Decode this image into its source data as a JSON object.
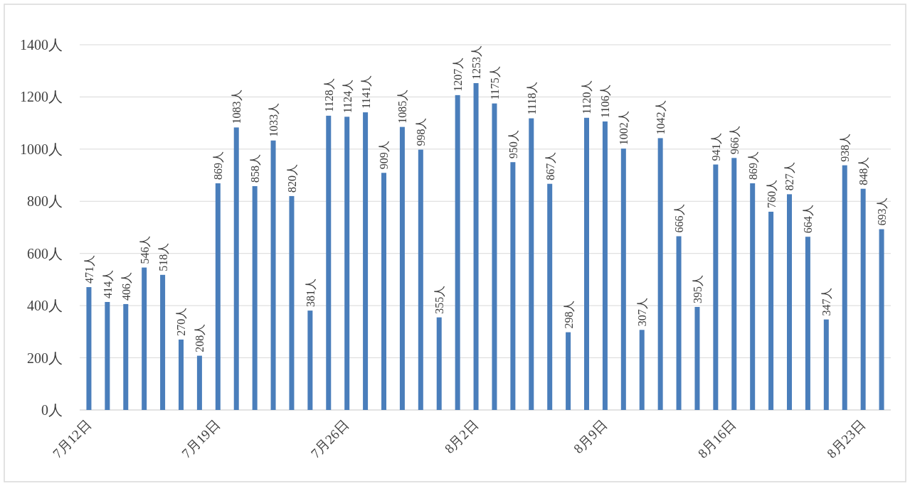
{
  "chart_data": {
    "type": "bar",
    "color": "#4a7ebb",
    "grid": "y",
    "ylim": [
      0,
      1400
    ],
    "yticks": [
      {
        "value": 0,
        "label": "0人"
      },
      {
        "value": 200,
        "label": "200人"
      },
      {
        "value": 400,
        "label": "400人"
      },
      {
        "value": 600,
        "label": "600人"
      },
      {
        "value": 800,
        "label": "800人"
      },
      {
        "value": 1000,
        "label": "1000人"
      },
      {
        "value": 1200,
        "label": "1200人"
      },
      {
        "value": 1400,
        "label": "1400人"
      }
    ],
    "categories": [
      "7月12日",
      null,
      null,
      null,
      null,
      null,
      null,
      "7月19日",
      null,
      null,
      null,
      null,
      null,
      null,
      "7月26日",
      null,
      null,
      null,
      null,
      null,
      null,
      "8月2日",
      null,
      null,
      null,
      null,
      null,
      null,
      "8月9日",
      null,
      null,
      null,
      null,
      null,
      null,
      "8月16日",
      null,
      null,
      null,
      null,
      null,
      null,
      "8月23日",
      null
    ],
    "values": [
      471,
      414,
      406,
      546,
      518,
      270,
      208,
      869,
      1083,
      858,
      1033,
      820,
      381,
      1128,
      1124,
      1141,
      909,
      1085,
      998,
      355,
      1207,
      1253,
      1175,
      950,
      1118,
      867,
      298,
      1120,
      1106,
      1002,
      307,
      1042,
      666,
      395,
      941,
      966,
      869,
      760,
      827,
      664,
      347,
      938,
      848,
      693
    ],
    "value_labels": [
      "471人",
      "414人",
      "406人",
      "546人",
      "518人",
      "270人",
      "208人",
      "869人",
      "1083人",
      "858人",
      "1033人",
      "820人",
      "381人",
      "1128人",
      "1124人",
      "1141人",
      "909人",
      "1085人",
      "998人",
      "355人",
      "1207人",
      "1253人",
      "1175人",
      "950人",
      "1118人",
      "867人",
      "298人",
      "1120人",
      "1106人",
      "1002人",
      "307人",
      "1042人",
      "666人",
      "395人",
      "941人",
      "966人",
      "869人",
      "760人",
      "827人",
      "664人",
      "347人",
      "938人",
      "848人",
      "693人"
    ]
  }
}
